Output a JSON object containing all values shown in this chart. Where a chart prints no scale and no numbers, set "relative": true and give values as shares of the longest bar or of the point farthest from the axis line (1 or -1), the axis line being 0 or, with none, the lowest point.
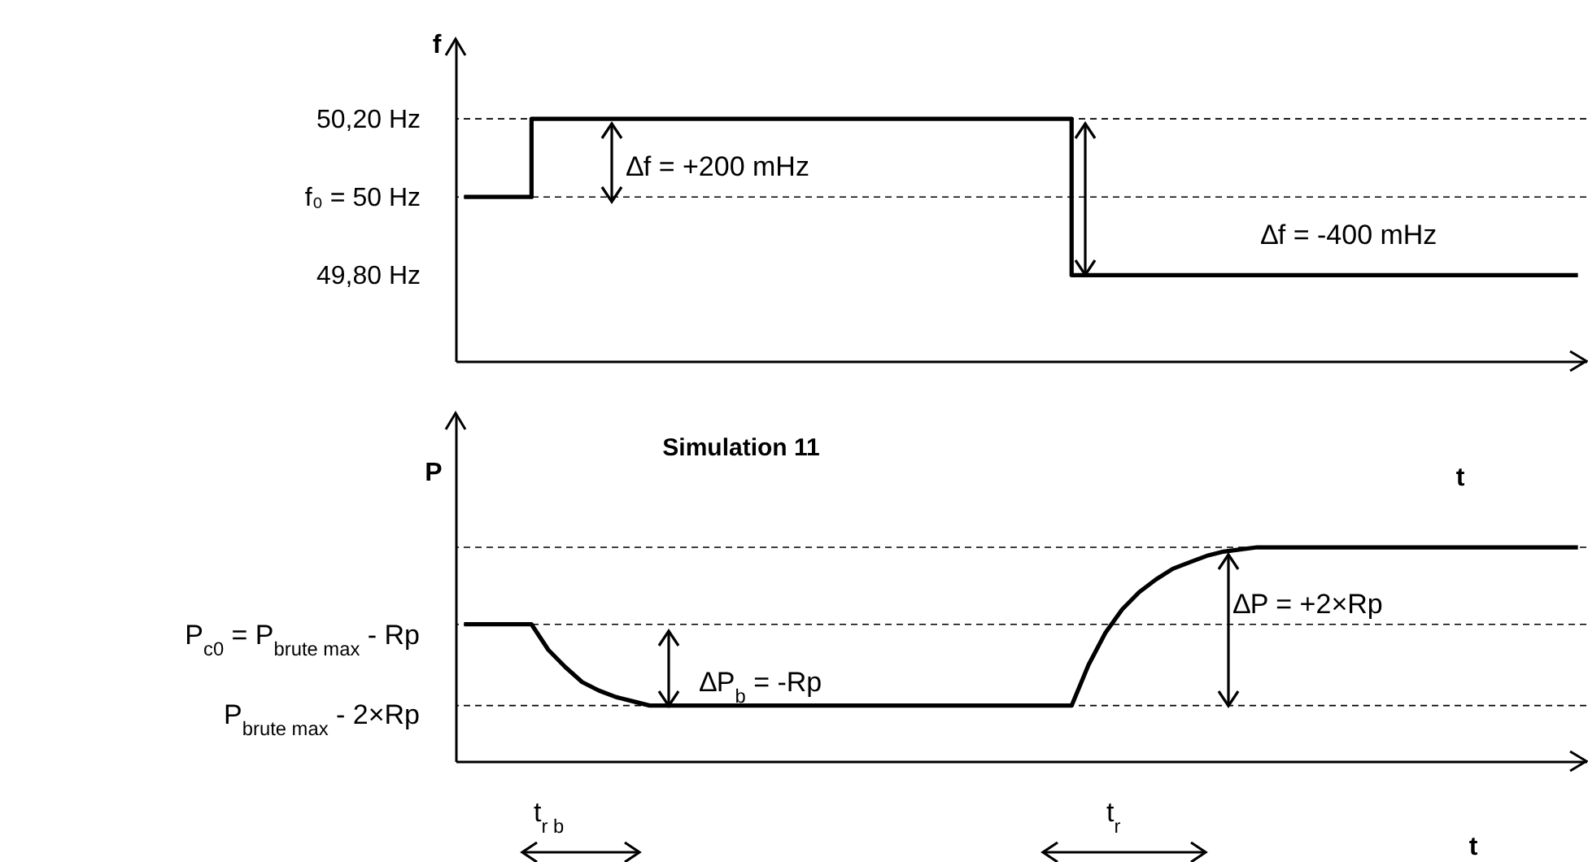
{
  "chart_data": [
    {
      "type": "step",
      "ylabel": "f",
      "xlabel": "t",
      "color": "#000000",
      "tick_labels": "y",
      "categories": [
        null,
        null,
        null,
        null,
        null,
        null,
        null,
        null,
        null,
        null,
        null,
        null,
        null,
        null,
        null,
        null,
        null,
        null,
        null,
        null,
        null,
        null,
        null,
        null,
        null,
        null,
        null,
        null,
        null,
        null,
        null,
        null,
        null,
        null,
        null,
        null,
        null,
        null,
        null,
        null,
        null,
        null,
        null,
        null,
        null,
        null,
        null,
        null,
        null,
        null,
        null,
        null,
        null,
        null,
        null,
        null,
        null,
        null,
        null,
        null,
        null,
        null,
        null,
        null,
        null,
        null,
        null
      ],
      "values": [
        50,
        50,
        50,
        50,
        50.2,
        50.2,
        50.2,
        50.2,
        50.2,
        50.2,
        50.2,
        50.2,
        50.2,
        50.2,
        50.2,
        50.2,
        50.2,
        50.2,
        50.2,
        50.2,
        50.2,
        50.2,
        50.2,
        50.2,
        50.2,
        50.2,
        50.2,
        50.2,
        50.2,
        50.2,
        50.2,
        50.2,
        50.2,
        50.2,
        50.2,
        50.2,
        49.8,
        49.8,
        49.8,
        49.8,
        49.8,
        49.8,
        49.8,
        49.8,
        49.8,
        49.8,
        49.8,
        49.8,
        49.8,
        49.8,
        49.8,
        49.8,
        49.8,
        49.8,
        49.8,
        49.8,
        49.8,
        49.8,
        49.8,
        49.8,
        49.8,
        49.8,
        49.8,
        49.8,
        49.8,
        49.8,
        49.8
      ],
      "ylim": [
        49.58,
        50.4
      ],
      "yticks": [
        {
          "value": 50.2,
          "label": "50,20 Hz"
        },
        {
          "value": 50,
          "label": "f₀ = 50 Hz"
        },
        {
          "value": 49.8,
          "label": "49,80 Hz"
        }
      ],
      "ref_lines": [
        {
          "axis": "y",
          "value": 50.2,
          "line_style": "dashed",
          "color": "#000000"
        },
        {
          "axis": "y",
          "value": 50,
          "line_style": "dashed",
          "color": "#000000"
        }
      ],
      "annotations": [
        "∆f = +200 mHz",
        "∆f = -400 mHz"
      ]
    },
    {
      "type": "line",
      "title": "Simulation 11",
      "ylabel": "P",
      "xlabel": "t",
      "color": "#000000",
      "relative": true,
      "tick_labels": false,
      "categories": [
        null,
        null,
        null,
        null,
        null,
        null,
        null,
        null,
        null,
        null,
        null,
        null,
        null,
        null,
        null,
        null,
        null,
        null,
        null,
        null,
        null,
        null,
        null,
        null,
        null,
        null,
        null,
        null,
        null,
        null,
        null,
        null,
        null,
        null,
        null,
        null,
        null,
        null,
        null,
        null,
        null,
        null,
        null,
        null,
        null,
        null,
        null,
        null,
        null,
        null,
        null,
        null,
        null,
        null,
        null,
        null,
        null,
        null,
        null,
        null,
        null,
        null,
        null,
        null,
        null,
        null,
        null
      ],
      "values": [
        0.64,
        0.64,
        0.64,
        0.64,
        0.64,
        0.52,
        0.44,
        0.37,
        0.33,
        0.3,
        0.28,
        0.26,
        0.26,
        0.26,
        0.26,
        0.26,
        0.26,
        0.26,
        0.26,
        0.26,
        0.26,
        0.26,
        0.26,
        0.26,
        0.26,
        0.26,
        0.26,
        0.26,
        0.26,
        0.26,
        0.26,
        0.26,
        0.26,
        0.26,
        0.26,
        0.26,
        0.26,
        0.45,
        0.6,
        0.71,
        0.79,
        0.85,
        0.9,
        0.93,
        0.96,
        0.98,
        0.99,
        1,
        1,
        1,
        1,
        1,
        1,
        1,
        1,
        1,
        1,
        1,
        1,
        1,
        1,
        1,
        1,
        1,
        1,
        1,
        1
      ],
      "ref_lines": [
        {
          "axis": "y",
          "value": 1,
          "line_style": "dashed",
          "color": "#000000"
        },
        {
          "axis": "y",
          "value": 0.64,
          "line_style": "dashed",
          "color": "#000000"
        },
        {
          "axis": "y",
          "value": 0.26,
          "line_style": "dashed",
          "color": "#000000"
        }
      ],
      "annotations": [
        "P$_{c0}$ = P$_{brute max}$ - Rp",
        "P$_{brute max}$ - 2×Rp",
        "∆P$_{b}$ = -Rp",
        "∆P = +2×Rp",
        "t$_{r b}$",
        "t$_{r}$"
      ]
    }
  ]
}
